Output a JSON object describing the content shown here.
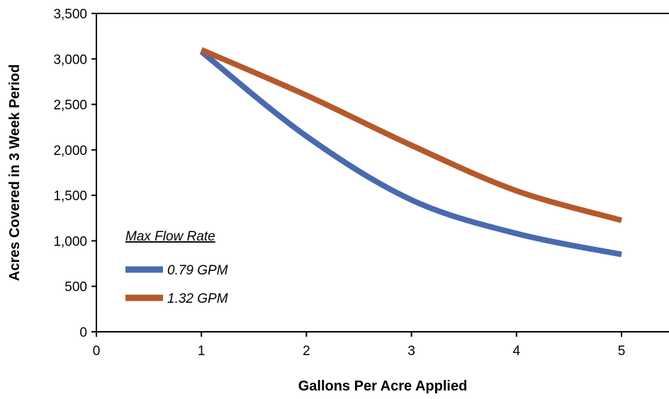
{
  "chart_data": {
    "type": "line",
    "xlabel": "Gallons Per Acre Applied",
    "ylabel": "Acres Covered in 3 Week Period",
    "xlim": [
      0,
      5
    ],
    "ylim": [
      0,
      3500
    ],
    "x_ticks": [
      "0",
      "1",
      "2",
      "3",
      "4",
      "5"
    ],
    "y_ticks": [
      "0",
      "500",
      "1,000",
      "1,500",
      "2,000",
      "2,500",
      "3,000",
      "3,500"
    ],
    "grid": false,
    "legend_title": "Max Flow Rate",
    "legend_position": "bottom-left",
    "x": [
      1,
      2,
      3,
      4,
      5
    ],
    "series": [
      {
        "name": "0.79 GPM",
        "color": "#4a6aaf",
        "values": [
          3080,
          2150,
          1450,
          1080,
          850
        ]
      },
      {
        "name": "1.32 GPM",
        "color": "#b5592a",
        "values": [
          3100,
          2600,
          2050,
          1550,
          1225
        ]
      }
    ]
  }
}
